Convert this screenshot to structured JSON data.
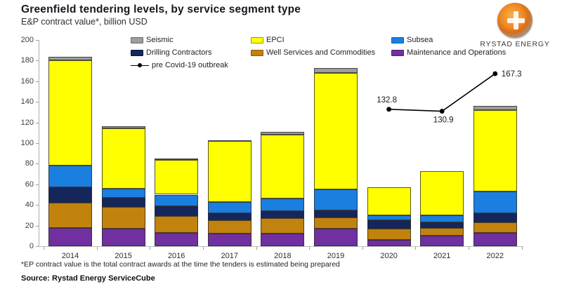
{
  "header": {
    "title": "Greenfield tendering levels, by service segment type",
    "subtitle": "E&P contract value*, billion USD"
  },
  "brand": {
    "name": "RYSTAD ENERGY"
  },
  "colors": {
    "seismic": "#9d9d9d",
    "epci": "#ffff00",
    "subsea": "#1b7fe0",
    "drilling": "#14265c",
    "well": "#c2820e",
    "mo": "#7030a0",
    "line": "#000000"
  },
  "swatch_borders": {
    "seismic": "#6b6b6b",
    "epci": "#99990a",
    "subsea": "#0f5fae",
    "drilling": "#0a1638",
    "well": "#8a5c08",
    "mo": "#4f1f73"
  },
  "legend": {
    "columns": [
      [
        {
          "key": "seismic",
          "label": "Seismic"
        },
        {
          "key": "drilling",
          "label": "Drilling Contractors"
        },
        {
          "key": "line",
          "label": "pre Covid-19 outbreak"
        }
      ],
      [
        {
          "key": "epci",
          "label": "EPCI"
        },
        {
          "key": "well",
          "label": "Well Services and Commodities"
        }
      ],
      [
        {
          "key": "subsea",
          "label": "Subsea"
        },
        {
          "key": "mo",
          "label": "Maintenance and Operations"
        }
      ]
    ]
  },
  "chart_data": {
    "type": "bar",
    "stacked": true,
    "title": "Greenfield tendering levels, by service segment type",
    "ylabel": "E&P contract value*, billion USD",
    "ylim": [
      0,
      200
    ],
    "y_ticks": [
      0,
      20,
      40,
      60,
      80,
      100,
      120,
      140,
      160,
      180,
      200
    ],
    "grid": false,
    "legend_position": "top",
    "categories": [
      "2014",
      "2015",
      "2016",
      "2017",
      "2018",
      "2019",
      "2020",
      "2021",
      "2022"
    ],
    "series": [
      {
        "name": "Maintenance and Operations",
        "key": "mo",
        "values": [
          18,
          17,
          13,
          12,
          12,
          17,
          6,
          10,
          13
        ]
      },
      {
        "name": "Well Services and Commodities",
        "key": "well",
        "values": [
          24,
          21,
          16,
          13,
          15,
          11,
          11,
          8,
          10
        ]
      },
      {
        "name": "Drilling Contractors",
        "key": "drilling",
        "values": [
          15,
          9,
          10,
          7,
          7,
          7,
          8,
          5,
          9
        ]
      },
      {
        "name": "Subsea",
        "key": "subsea",
        "values": [
          21,
          9,
          11,
          11,
          12,
          20,
          5,
          7,
          21
        ]
      },
      {
        "name": "EPCI",
        "key": "epci",
        "values": [
          102,
          58,
          34,
          59,
          62,
          113,
          27,
          43,
          79
        ]
      },
      {
        "name": "Seismic",
        "key": "seismic",
        "values": [
          4,
          2,
          1,
          1,
          3,
          5,
          0,
          0,
          4
        ]
      }
    ],
    "line_series": {
      "name": "pre Covid-19 outbreak",
      "categories": [
        "2020",
        "2021",
        "2022"
      ],
      "values": [
        132.8,
        130.9,
        167.3
      ]
    }
  },
  "footnote": "*EP contract value is the total contract awards at the time the tenders is estimated being prepared",
  "source": "Source: Rystad Energy ServiceCube"
}
